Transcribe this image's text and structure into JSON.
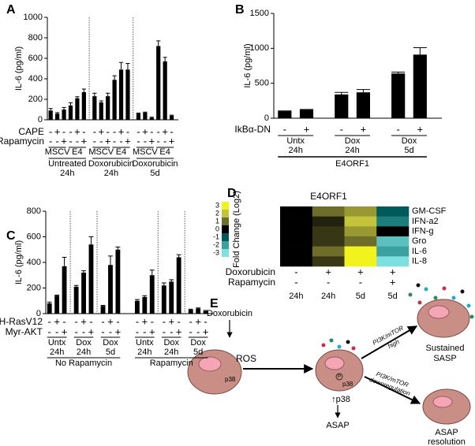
{
  "chart_data": [
    {
      "type": "bar",
      "panel": "A",
      "y_label": "IL-6 (pg/ml)",
      "color": "#000000",
      "ylim": [
        0,
        1000
      ],
      "yticks": [
        0,
        200,
        400,
        600,
        800,
        1000
      ],
      "values": [
        90,
        60,
        100,
        140,
        210,
        270,
        230,
        170,
        230,
        390,
        490,
        490,
        60,
        70,
        20,
        720,
        570,
        40
      ],
      "errors": [
        20,
        10,
        20,
        25,
        15,
        30,
        30,
        15,
        30,
        40,
        70,
        60,
        5,
        5,
        5,
        50,
        40,
        5
      ],
      "factors": [
        {
          "name": "CAPE",
          "levels": [
            "-",
            "+",
            "-",
            "-",
            "+",
            "-",
            "-",
            "+",
            "-",
            "-",
            "+",
            "-",
            "-",
            "+",
            "-",
            "-",
            "+",
            "-"
          ]
        },
        {
          "name": "Rapamycin",
          "levels": [
            "-",
            "-",
            "+",
            "-",
            "-",
            "+",
            "-",
            "-",
            "+",
            "-",
            "-",
            "+",
            "-",
            "-",
            "+",
            "-",
            "-",
            "+"
          ]
        }
      ],
      "subgroups": [
        "MSCV",
        "E4",
        "MSCV",
        "E4",
        "MSCV",
        "E4"
      ],
      "groups": [
        [
          "Untreated",
          "24h"
        ],
        [
          "Doxorubicin",
          "24h"
        ],
        [
          "Doxorubicin",
          "5d"
        ]
      ],
      "separators": true
    },
    {
      "type": "bar",
      "panel": "B",
      "y_label": "IL-6 (pg/ml)",
      "color": "#000000",
      "ylim": [
        0,
        1500
      ],
      "yticks": [
        0,
        500,
        1000,
        1500
      ],
      "values": [
        100,
        120,
        340,
        370,
        640,
        910
      ],
      "errors": [
        5,
        5,
        30,
        40,
        20,
        100
      ],
      "factors": [
        {
          "name": "IkBα-DN",
          "levels": [
            "-",
            "+",
            "-",
            "+",
            "-",
            "+"
          ]
        }
      ],
      "groups": [
        [
          "Untx",
          "24h"
        ],
        [
          "Dox",
          "24h"
        ],
        [
          "Dox",
          "5d"
        ]
      ],
      "bracket": "E4ORF1",
      "separators": false
    },
    {
      "type": "bar",
      "panel": "C",
      "y_label": "IL-6 (pg/ml)",
      "color": "#000000",
      "ylim": [
        0,
        800
      ],
      "yticks": [
        0,
        200,
        400,
        600,
        800
      ],
      "values": [
        80,
        140,
        370,
        210,
        320,
        540,
        60,
        380,
        500,
        100,
        130,
        300,
        220,
        250,
        440,
        30,
        40,
        20
      ],
      "errors": [
        10,
        5,
        70,
        10,
        15,
        60,
        5,
        70,
        20,
        10,
        10,
        40,
        20,
        15,
        20,
        5,
        5,
        5
      ],
      "factors": [
        {
          "name": "H-RasV12",
          "levels": [
            "-",
            "+",
            "-",
            "-",
            "+",
            "-",
            "-",
            "+",
            "-",
            "-",
            "+",
            "-",
            "-",
            "+",
            "-",
            "-",
            "+",
            "-"
          ]
        },
        {
          "name": "Myr-AKT",
          "levels": [
            "-",
            "-",
            "+",
            "-",
            "-",
            "+",
            "-",
            "-",
            "+",
            "-",
            "-",
            "+",
            "-",
            "-",
            "+",
            "-",
            "-",
            "+"
          ]
        }
      ],
      "groups": [
        [
          "Untx",
          "24h"
        ],
        [
          "Dox",
          "24h"
        ],
        [
          "Dox",
          "5d"
        ],
        [
          "Untx",
          "24h"
        ],
        [
          "Dox",
          "24h"
        ],
        [
          "Dox",
          "5d"
        ]
      ],
      "supergroups": [
        "No Rapamycin",
        "Rapamycin"
      ],
      "separators": true
    },
    {
      "type": "heatmap",
      "panel": "D",
      "title": "E4ORF1",
      "rows": [
        "GM-CSF",
        "IFN-a2",
        "IFN-g",
        "Gro",
        "IL-6",
        "IL-8"
      ],
      "values": [
        [
          0,
          1,
          1.5,
          -1
        ],
        [
          0,
          0.3,
          2,
          -1.5
        ],
        [
          0,
          0.5,
          1.5,
          0
        ],
        [
          0,
          0.5,
          1,
          -2.5
        ],
        [
          0,
          1,
          3,
          -2
        ],
        [
          0,
          0.5,
          3,
          -3
        ]
      ],
      "colorbar_label": "Fold Change (Log2)",
      "colorbar_ticks": [
        3,
        2,
        1,
        0,
        -1,
        -2,
        -3
      ],
      "colors": [
        "#f2f21c",
        "#c4c43c",
        "#6e6e2a",
        "#000000",
        "#005a5a",
        "#3aa0a0",
        "#7fdede"
      ],
      "factors": [
        {
          "name": "Doxorubicin",
          "levels": [
            "-",
            "+",
            "+",
            "+"
          ]
        },
        {
          "name": "Rapamycin",
          "levels": [
            "-",
            "-",
            "-",
            "+"
          ]
        }
      ],
      "time_labels": [
        "24h",
        "24h",
        "5d",
        "5d"
      ]
    }
  ],
  "diagram": {
    "panel": "E",
    "stimulus": "Doxorubicin",
    "ros": "ROS",
    "cell_marker": "p38",
    "phospho": "P",
    "phospho_marker": "p38",
    "up_marker": "↑p38",
    "asap": "ASAP",
    "high_pathway": "PI3K/mTOR",
    "high_state": "high",
    "sustained": [
      "Sustained",
      "SASP"
    ],
    "down_pathway": "PI3K/mTOR",
    "down_state": "downregulation",
    "resolution": [
      "ASAP",
      "resolution"
    ]
  }
}
